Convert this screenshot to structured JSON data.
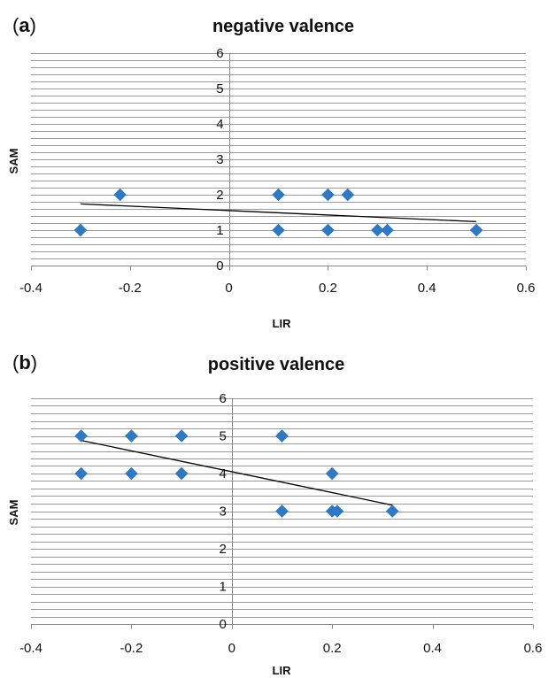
{
  "chart_data": [
    {
      "type": "scatter",
      "panel_label": "a",
      "title": "negative valence",
      "xlabel": "LIR",
      "ylabel": "SAM",
      "xlim": [
        -0.4,
        0.6
      ],
      "ylim": [
        0,
        6
      ],
      "x_ticks": [
        "-0.4",
        "-0.2",
        "0",
        "0.2",
        "0.4",
        "0.6"
      ],
      "y_ticks": [
        "0",
        "1",
        "2",
        "3",
        "4",
        "5",
        "6"
      ],
      "grid": "horizontal",
      "points": [
        {
          "x": -0.3,
          "y": 1
        },
        {
          "x": -0.22,
          "y": 2
        },
        {
          "x": 0.1,
          "y": 2
        },
        {
          "x": 0.1,
          "y": 1
        },
        {
          "x": 0.2,
          "y": 2
        },
        {
          "x": 0.2,
          "y": 1
        },
        {
          "x": 0.24,
          "y": 2
        },
        {
          "x": 0.3,
          "y": 1
        },
        {
          "x": 0.32,
          "y": 1
        },
        {
          "x": 0.5,
          "y": 1
        }
      ],
      "trendline": {
        "x": [
          -0.3,
          0.5
        ],
        "y": [
          1.74,
          1.24
        ]
      },
      "colors": {
        "marker": "#2e78c4",
        "trendline": "#000000"
      }
    },
    {
      "type": "scatter",
      "panel_label": "b",
      "title": "positive valence",
      "xlabel": "LIR",
      "ylabel": "SAM",
      "xlim": [
        -0.4,
        0.6
      ],
      "ylim": [
        0,
        6
      ],
      "x_ticks": [
        "-0.4",
        "-0.2",
        "0",
        "0.2",
        "0.4",
        "0.6"
      ],
      "y_ticks": [
        "0",
        "1",
        "2",
        "3",
        "4",
        "5",
        "6"
      ],
      "grid": "horizontal",
      "points": [
        {
          "x": -0.3,
          "y": 5
        },
        {
          "x": -0.3,
          "y": 4
        },
        {
          "x": -0.2,
          "y": 5
        },
        {
          "x": -0.2,
          "y": 4
        },
        {
          "x": -0.1,
          "y": 5
        },
        {
          "x": -0.1,
          "y": 4
        },
        {
          "x": 0.1,
          "y": 5
        },
        {
          "x": 0.1,
          "y": 3
        },
        {
          "x": 0.2,
          "y": 4
        },
        {
          "x": 0.2,
          "y": 3
        },
        {
          "x": 0.21,
          "y": 3
        },
        {
          "x": 0.32,
          "y": 3
        }
      ],
      "trendline": {
        "x": [
          -0.3,
          0.32
        ],
        "y": [
          4.88,
          3.16
        ]
      },
      "colors": {
        "marker": "#2e78c4",
        "trendline": "#000000"
      }
    }
  ]
}
